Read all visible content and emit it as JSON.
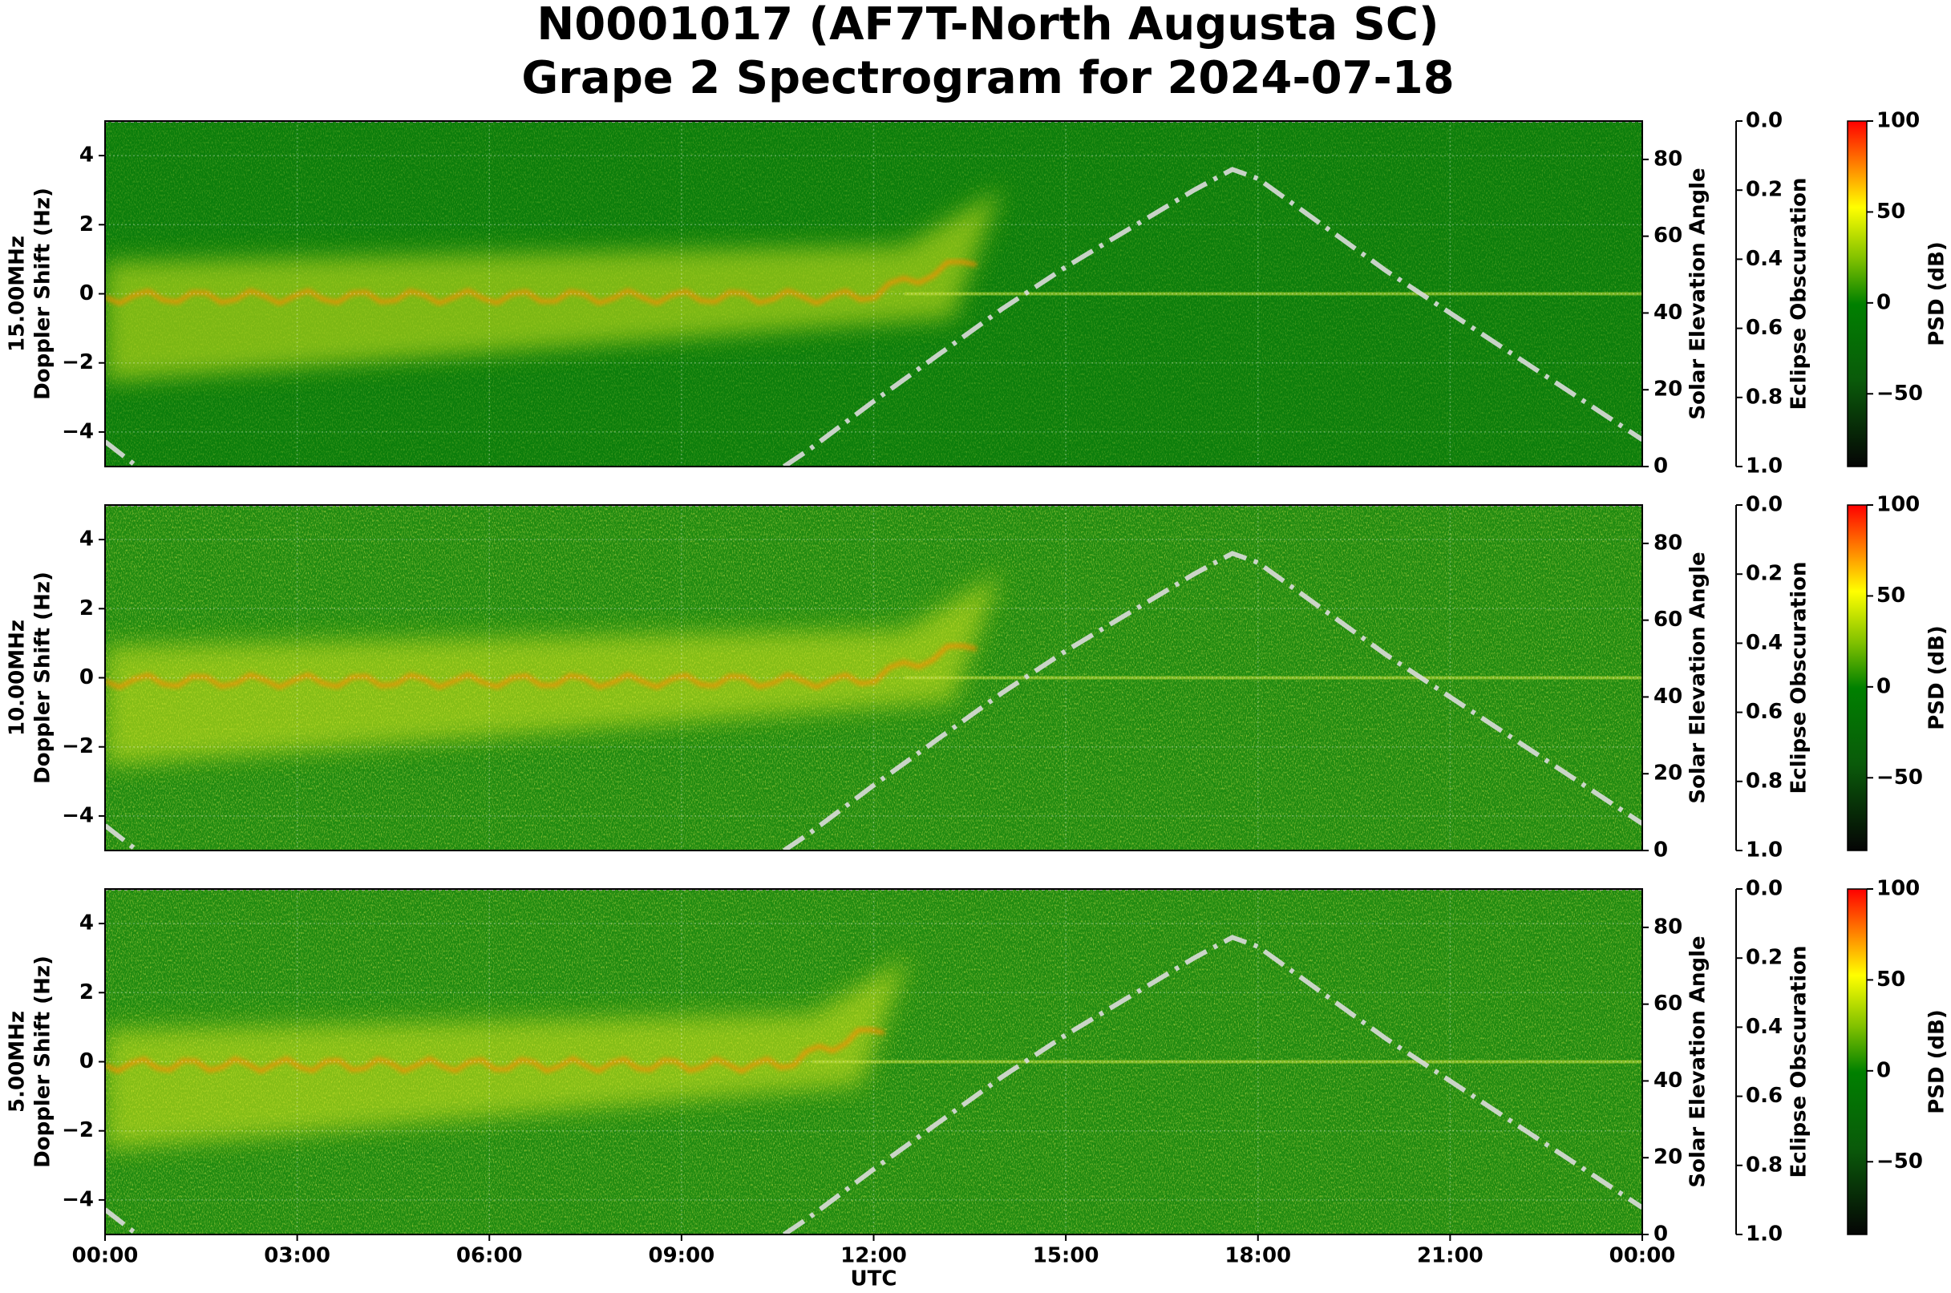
{
  "chart_data": [
    {
      "type": "spectrogram",
      "title": [
        "N0001017 (AF7T-North Augusta SC)",
        "Grape 2 Spectrogram for 2024-07-18"
      ],
      "ylabel": [
        "15.00MHz",
        "Doppler Shift (Hz)"
      ],
      "xlim": [
        0,
        24
      ],
      "ylim": [
        -5,
        5
      ],
      "yticks": [
        {
          "value": -4,
          "label": "−4"
        },
        {
          "value": -2,
          "label": "−2"
        },
        0,
        2,
        4
      ],
      "y2label": "Solar Elevation Angle",
      "y2lim": [
        0,
        90
      ],
      "y2ticks": [
        0,
        20,
        40,
        60,
        80
      ],
      "solar_elevation": {
        "axis": "y2",
        "color": "#dcdcdc",
        "x": [
          0,
          0.5,
          5,
          10.6,
          11,
          12,
          13,
          14,
          15,
          16,
          17,
          17.6,
          18,
          19,
          20,
          21,
          22,
          23,
          24
        ],
        "values": [
          6.5,
          0,
          null,
          0,
          4.5,
          17,
          29,
          41,
          52,
          62,
          72,
          77.4,
          75,
          63,
          51,
          40,
          29,
          18,
          7
        ]
      },
      "y3label": "Eclipse Obscuration",
      "y3lim": [
        1,
        0
      ],
      "y3ticks": [
        {
          "value": 0,
          "label": "0.0"
        },
        0.2,
        0.4,
        0.6,
        0.8,
        {
          "value": 1,
          "label": "1.0"
        }
      ],
      "colorbar": {
        "label": "PSD (dB)",
        "lim": [
          -90,
          100
        ],
        "ticks": [
          100,
          50,
          0,
          {
            "value": -50,
            "label": "−50"
          }
        ]
      },
      "grid": true
    },
    {
      "type": "spectrogram",
      "ylabel": [
        "10.00MHz",
        "Doppler Shift (Hz)"
      ],
      "xlim": [
        0,
        24
      ],
      "ylim": [
        -5,
        5
      ],
      "yticks": [
        {
          "value": -4,
          "label": "−4"
        },
        {
          "value": -2,
          "label": "−2"
        },
        0,
        2,
        4
      ],
      "y2label": "Solar Elevation Angle",
      "y2lim": [
        0,
        90
      ],
      "y2ticks": [
        0,
        20,
        40,
        60,
        80
      ],
      "solar_elevation": {
        "axis": "y2",
        "color": "#dcdcdc",
        "x": [
          0,
          0.5,
          5,
          10.6,
          11,
          12,
          13,
          14,
          15,
          16,
          17,
          17.6,
          18,
          19,
          20,
          21,
          22,
          23,
          24
        ],
        "values": [
          6.5,
          0,
          null,
          0,
          4.5,
          17,
          29,
          41,
          52,
          62,
          72,
          77.4,
          75,
          63,
          51,
          40,
          29,
          18,
          7
        ]
      },
      "y3label": "Eclipse Obscuration",
      "y3lim": [
        1,
        0
      ],
      "y3ticks": [
        {
          "value": 0,
          "label": "0.0"
        },
        0.2,
        0.4,
        0.6,
        0.8,
        {
          "value": 1,
          "label": "1.0"
        }
      ],
      "colorbar": {
        "label": "PSD (dB)",
        "lim": [
          -90,
          100
        ],
        "ticks": [
          100,
          50,
          0,
          {
            "value": -50,
            "label": "−50"
          }
        ]
      },
      "grid": true
    },
    {
      "type": "spectrogram",
      "ylabel": [
        "5.00MHz",
        "Doppler Shift (Hz)"
      ],
      "xlabel": "UTC",
      "xlim": [
        0,
        24
      ],
      "xticks": [
        {
          "value": 0,
          "label": "00:00"
        },
        {
          "value": 3,
          "label": "03:00"
        },
        {
          "value": 6,
          "label": "06:00"
        },
        {
          "value": 9,
          "label": "09:00"
        },
        {
          "value": 12,
          "label": "12:00"
        },
        {
          "value": 15,
          "label": "15:00"
        },
        {
          "value": 18,
          "label": "18:00"
        },
        {
          "value": 21,
          "label": "21:00"
        },
        {
          "value": 24,
          "label": "00:00"
        }
      ],
      "ylim": [
        -5,
        5
      ],
      "yticks": [
        {
          "value": -4,
          "label": "−4"
        },
        {
          "value": -2,
          "label": "−2"
        },
        0,
        2,
        4
      ],
      "y2label": "Solar Elevation Angle",
      "y2lim": [
        0,
        90
      ],
      "y2ticks": [
        0,
        20,
        40,
        60,
        80
      ],
      "solar_elevation": {
        "axis": "y2",
        "color": "#dcdcdc",
        "x": [
          0,
          0.5,
          5,
          10.6,
          11,
          12,
          13,
          14,
          15,
          16,
          17,
          17.6,
          18,
          19,
          20,
          21,
          22,
          23,
          24
        ],
        "values": [
          6.5,
          0,
          null,
          0,
          4.5,
          17,
          29,
          41,
          52,
          62,
          72,
          77.4,
          75,
          63,
          51,
          40,
          29,
          18,
          7
        ]
      },
      "y3label": "Eclipse Obscuration",
      "y3lim": [
        1,
        0
      ],
      "y3ticks": [
        {
          "value": 0,
          "label": "0.0"
        },
        0.2,
        0.4,
        0.6,
        0.8,
        {
          "value": 1,
          "label": "1.0"
        }
      ],
      "colorbar": {
        "label": "PSD (dB)",
        "lim": [
          -90,
          100
        ],
        "ticks": [
          100,
          50,
          0,
          {
            "value": -50,
            "label": "−50"
          }
        ]
      },
      "grid": true
    }
  ]
}
